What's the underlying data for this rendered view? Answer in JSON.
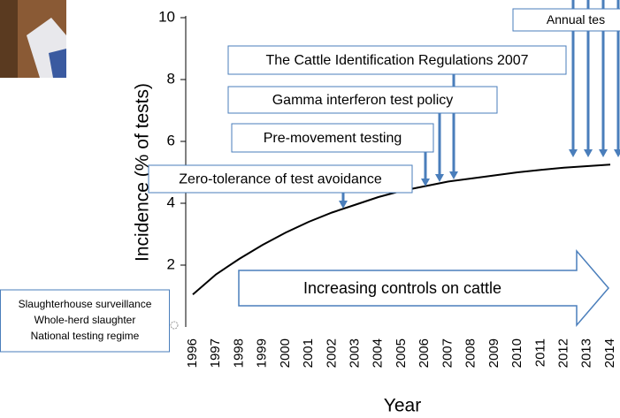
{
  "chart_data": {
    "type": "line",
    "y_label": "Incidence (% of tests)",
    "x_label": "Year",
    "categories": [
      "1996",
      "1997",
      "1998",
      "1999",
      "2000",
      "2001",
      "2002",
      "2003",
      "2004",
      "2005",
      "2006",
      "2007",
      "2008",
      "2009",
      "2010",
      "2011",
      "2012",
      "2013",
      "2014"
    ],
    "values": [
      1.05,
      1.7,
      2.2,
      2.65,
      3.05,
      3.4,
      3.7,
      3.95,
      4.2,
      4.4,
      4.55,
      4.7,
      4.8,
      4.9,
      5.0,
      5.08,
      5.15,
      5.2,
      5.25
    ],
    "color": "#000000",
    "ylim": [
      0,
      10
    ],
    "yticks": [
      2,
      4,
      6,
      8,
      10
    ],
    "annotations": [
      "Annual tes",
      "The Cattle Identification Regulations 2007",
      "Gamma interferon test policy",
      "Pre-movement testing",
      "Zero-tolerance of test avoidance"
    ],
    "arrow_label": "Increasing controls on cattle",
    "box_lines": [
      "Slaughterhouse surveillance",
      "Whole-herd slaughter",
      "National testing regime"
    ]
  }
}
